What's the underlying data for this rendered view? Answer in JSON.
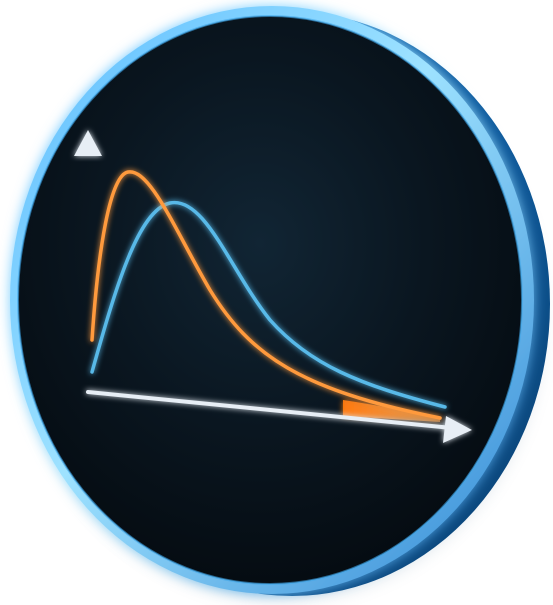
{
  "image": {
    "subject": "glowing-disc-icon-with-two-distribution-curves",
    "colors": {
      "background": "#ffffff",
      "disc_dark": "#07121b",
      "disc_mid": "#0c1d2a",
      "rim_outer": "#3d9fe4",
      "rim_glow": "#7fd3ff",
      "rim_shadow": "#0b5d9d",
      "axes": "#e7eef5",
      "curve_orange": "#ff9a3d",
      "curve_blue": "#58b9e8",
      "tail_fill": "#ff8a1f"
    },
    "icons": {
      "axis_arrow_up": "arrow-up-icon",
      "axis_arrow_right": "arrow-right-icon"
    }
  }
}
